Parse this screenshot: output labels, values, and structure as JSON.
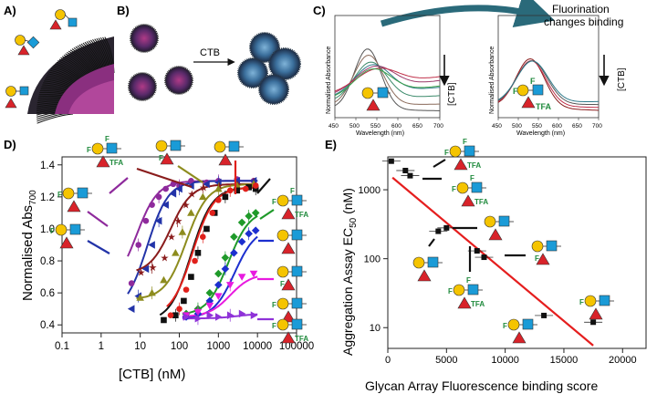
{
  "panels": {
    "a": {
      "label": "A)"
    },
    "b": {
      "label": "B)",
      "arrow_label": "CTB"
    },
    "c": {
      "label": "C)",
      "annotation": {
        "line1": "Fluorination",
        "line2": "changes binding"
      },
      "left": {
        "ylabel": "Normalised Absorbance",
        "xlabel": "Wavelength (nm)",
        "xticks": [
          "450",
          "500",
          "550",
          "600",
          "650",
          "700"
        ],
        "arrow_label": "[CTB]"
      },
      "right": {
        "ylabel": "Normalised Absorbance",
        "xlabel": "Wavelength (nm)",
        "xticks": [
          "450",
          "500",
          "550",
          "600",
          "650",
          "700"
        ],
        "arrow_label": "[CTB]",
        "glycan_labels": {
          "f1": "F",
          "f2": "F",
          "tfa": "TFA"
        }
      }
    },
    "d": {
      "label": "D)"
    },
    "e": {
      "label": "E)"
    }
  },
  "colors": {
    "galactose": "#f5c400",
    "glcnac": "#1a9bd7",
    "fucose": "#d8232a",
    "fluoro": "#1f8a3c",
    "fit_line_e": "#e51e1e"
  },
  "chart_data": [
    {
      "type": "scatter",
      "panel": "D",
      "xlabel": "[CTB] (nM)",
      "ylabel": "Normalised Abs",
      "ylabel_sub": "700",
      "xscale": "log",
      "xlim": [
        0.1,
        100000
      ],
      "ylim": [
        0.35,
        1.45
      ],
      "xtick_labels": [
        "0.1",
        "1",
        "10",
        "100",
        "1000",
        "10000",
        "100000"
      ],
      "ytick_labels": [
        "0.4",
        "0.6",
        "0.8",
        "1.0",
        "1.2",
        "1.4"
      ],
      "series": [
        {
          "name": "purple",
          "color": "#8e2a9c",
          "marker": "circle",
          "bottom": 0.62,
          "top": 1.3,
          "ec50": 8,
          "x": [
            6,
            9,
            14,
            20,
            30,
            45,
            70,
            100,
            200,
            500,
            1000,
            3000,
            8000
          ],
          "y": [
            0.66,
            0.9,
            1.05,
            1.15,
            1.2,
            1.25,
            1.28,
            1.27,
            1.3,
            1.29,
            1.3,
            1.31,
            1.3
          ]
        },
        {
          "name": "blue",
          "color": "#2233a8",
          "marker": "triangle-left",
          "bottom": 0.48,
          "top": 1.3,
          "ec50": 15,
          "x": [
            6,
            9,
            14,
            20,
            30,
            45,
            70,
            100,
            200,
            500,
            1000,
            3000,
            8000
          ],
          "y": [
            0.5,
            0.58,
            0.75,
            0.9,
            1.05,
            1.15,
            1.22,
            1.25,
            1.27,
            1.28,
            1.29,
            1.3,
            1.3
          ]
        },
        {
          "name": "brown",
          "color": "#8a1c1c",
          "marker": "star",
          "bottom": 0.72,
          "top": 1.28,
          "ec50": 60,
          "x": [
            10,
            20,
            40,
            60,
            90,
            140,
            200,
            400,
            1000,
            3000,
            8000
          ],
          "y": [
            0.73,
            0.76,
            0.82,
            0.95,
            1.05,
            1.15,
            1.22,
            1.26,
            1.27,
            1.28,
            1.28
          ]
        },
        {
          "name": "olive",
          "color": "#8d8c1e",
          "marker": "triangle-up",
          "bottom": 0.56,
          "top": 1.28,
          "ec50": 150,
          "x": [
            10,
            20,
            40,
            80,
            120,
            200,
            400,
            1000,
            3000,
            8000
          ],
          "y": [
            0.57,
            0.6,
            0.68,
            0.85,
            0.98,
            1.1,
            1.2,
            1.25,
            1.27,
            1.28
          ]
        },
        {
          "name": "black",
          "color": "#111111",
          "marker": "square",
          "bottom": 0.42,
          "top": 1.26,
          "ec50": 200,
          "x": [
            40,
            80,
            130,
            200,
            300,
            500,
            800,
            1500,
            3000,
            6000,
            9000
          ],
          "y": [
            0.43,
            0.46,
            0.55,
            0.7,
            0.85,
            1.0,
            1.1,
            1.2,
            1.24,
            1.26,
            1.25
          ]
        },
        {
          "name": "red",
          "color": "#e0201b",
          "marker": "circle",
          "bottom": 0.45,
          "top": 1.26,
          "ec50": 220,
          "x": [
            60,
            100,
            150,
            250,
            400,
            700,
            1000,
            2000,
            5000,
            9000
          ],
          "y": [
            0.46,
            0.5,
            0.62,
            0.8,
            0.95,
            1.1,
            1.18,
            1.24,
            1.25,
            1.27
          ]
        },
        {
          "name": "green",
          "color": "#1f9a2a",
          "marker": "diamond",
          "bottom": 0.46,
          "top": 1.12,
          "ec50": 1800,
          "x": [
            150,
            300,
            600,
            1000,
            1500,
            2500,
            4000,
            6000,
            9000
          ],
          "y": [
            0.47,
            0.5,
            0.6,
            0.72,
            0.82,
            0.95,
            1.04,
            1.08,
            1.1
          ]
        },
        {
          "name": "darkblue",
          "color": "#1c2fcf",
          "marker": "diamond",
          "bottom": 0.44,
          "top": 1.01,
          "ec50": 2600,
          "x": [
            150,
            300,
            600,
            1000,
            1500,
            2500,
            4000,
            6000,
            9000
          ],
          "y": [
            0.45,
            0.47,
            0.55,
            0.65,
            0.75,
            0.85,
            0.92,
            0.97,
            0.99
          ]
        },
        {
          "name": "magenta",
          "color": "#e81adf",
          "marker": "triangle-down",
          "bottom": 0.45,
          "top": 0.72,
          "ec50": 2000,
          "x": [
            150,
            300,
            600,
            1000,
            2000,
            4000,
            8000
          ],
          "y": [
            0.46,
            0.48,
            0.52,
            0.58,
            0.65,
            0.7,
            0.72
          ]
        },
        {
          "name": "violet",
          "color": "#8f32d8",
          "marker": "triangle-right",
          "bottom": 0.44,
          "top": 0.47,
          "ec50": 3000,
          "x": [
            150,
            300,
            600,
            1000,
            2000,
            4000,
            8000
          ],
          "y": [
            0.45,
            0.44,
            0.46,
            0.45,
            0.46,
            0.47,
            0.46
          ]
        }
      ]
    },
    {
      "type": "scatter",
      "panel": "E",
      "xlabel": "Glycan Array Fluorescence binding score",
      "ylabel": "Aggregation Assay EC",
      "ylabel_sub": "50",
      "ylabel_unit": " (nM)",
      "xlim": [
        0,
        22000
      ],
      "ylim": [
        5,
        3000
      ],
      "yscale": "log",
      "xtick_labels": [
        "0",
        "5000",
        "10000",
        "15000",
        "20000"
      ],
      "ytick_labels": [
        "10",
        "100",
        "1000"
      ],
      "points": [
        {
          "x": 300,
          "y": 2600
        },
        {
          "x": 1500,
          "y": 1900
        },
        {
          "x": 1900,
          "y": 1600
        },
        {
          "x": 4300,
          "y": 250
        },
        {
          "x": 5000,
          "y": 280
        },
        {
          "x": 7600,
          "y": 130
        },
        {
          "x": 8200,
          "y": 105
        },
        {
          "x": 13300,
          "y": 15
        },
        {
          "x": 17500,
          "y": 12
        }
      ],
      "fit_line": {
        "x": [
          400,
          17500
        ],
        "y": [
          1500,
          5.5
        ]
      }
    }
  ],
  "glycan_labels": {
    "tfa": "TFA",
    "f": "F"
  }
}
